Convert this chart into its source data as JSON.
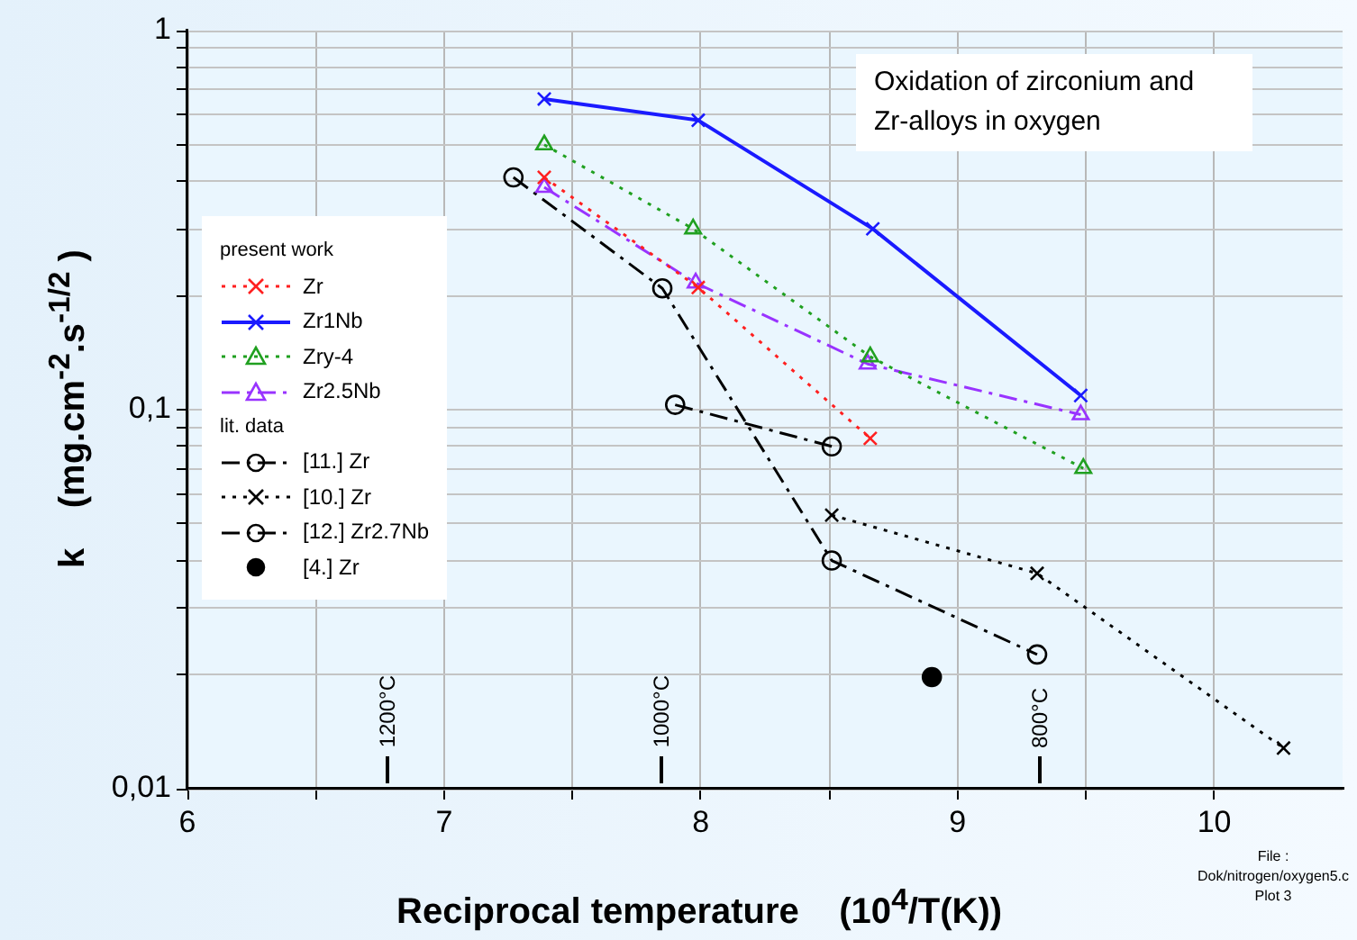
{
  "chart_data": {
    "type": "line",
    "title": "Oxidation of zirconium and Zr-alloys in oxygen",
    "xlabel": "Reciprocal temperature    (10$^{4}$/T(K))",
    "ylabel": "k    (mg.cm$^{-2}$.s$^{-1/2}$ )",
    "log": "y",
    "grid": true,
    "legend": "left",
    "xlim": [
      6,
      10.5
    ],
    "ylim": [
      0.01,
      1
    ],
    "xticks": [
      6,
      {
        "value": 6.5,
        "label": null
      },
      7,
      {
        "value": 7.5,
        "label": null
      },
      8,
      {
        "value": 8.5,
        "label": null
      },
      9,
      {
        "value": 9.5,
        "label": null
      },
      10
    ],
    "yticks": [
      {
        "value": 0.01,
        "label": "0,01"
      },
      {
        "value": 0.02,
        "label": null
      },
      {
        "value": 0.03,
        "label": null
      },
      {
        "value": 0.04,
        "label": null
      },
      {
        "value": 0.05,
        "label": null
      },
      {
        "value": 0.06,
        "label": null
      },
      {
        "value": 0.07,
        "label": null
      },
      {
        "value": 0.08,
        "label": null
      },
      {
        "value": 0.09,
        "label": null
      },
      {
        "value": 0.1,
        "label": "0,1"
      },
      {
        "value": 0.2,
        "label": null
      },
      {
        "value": 0.3,
        "label": null
      },
      {
        "value": 0.4,
        "label": null
      },
      {
        "value": 0.5,
        "label": null
      },
      {
        "value": 0.6,
        "label": null
      },
      {
        "value": 0.7,
        "label": null
      },
      {
        "value": 0.8,
        "label": null
      },
      {
        "value": 0.9,
        "label": null
      },
      {
        "value": 1,
        "label": "1"
      }
    ],
    "annotations": [
      "present work",
      "lit. data",
      "1200°C",
      "1000°C",
      "800°C",
      "File : Dok/nitrogen/oxygen5.c",
      "Plot 3"
    ],
    "series": [
      {
        "name": "Zr",
        "color": "#ff2020",
        "marker": "cross",
        "line_style": "dotted",
        "x": [
          7.39,
          7.99,
          8.66
        ],
        "values": [
          0.41,
          0.21,
          0.084
        ]
      },
      {
        "name": "Zr1Nb",
        "color": "#1a1aff",
        "marker": "cross",
        "line_style": "solid",
        "x": [
          7.39,
          7.99,
          8.67,
          9.48
        ],
        "values": [
          0.66,
          0.58,
          0.3,
          0.109
        ]
      },
      {
        "name": "Zry-4",
        "color": "#20a020",
        "marker": "triangle",
        "line_style": "dotted",
        "x": [
          7.39,
          7.97,
          8.66,
          9.49
        ],
        "values": [
          0.5,
          0.3,
          0.138,
          0.07
        ]
      },
      {
        "name": "Zr2.5Nb",
        "color": "#9933ff",
        "marker": "triangle",
        "line_style": "dashed",
        "x": [
          7.39,
          7.98,
          8.65,
          9.48
        ],
        "values": [
          0.386,
          0.216,
          0.132,
          0.097
        ]
      },
      {
        "name": "[11.] Zr",
        "color": "#000000",
        "marker": "circle",
        "line_style": "dashed",
        "x": [
          7.27,
          7.85,
          8.51,
          9.31
        ],
        "values": [
          0.41,
          0.209,
          0.04,
          0.0226
        ]
      },
      {
        "name": "[10.] Zr",
        "color": "#000000",
        "marker": "cross",
        "line_style": "dotted",
        "x": [
          8.51,
          9.31,
          10.27
        ],
        "values": [
          0.0527,
          0.037,
          0.0128
        ]
      },
      {
        "name": "[12.] Zr2.7Nb",
        "color": "#000000",
        "marker": "circle",
        "line_style": "dashed",
        "x": [
          7.9,
          8.51
        ],
        "values": [
          0.103,
          0.08
        ]
      },
      {
        "name": "[4.] Zr",
        "type": "scatter",
        "color": "#000000",
        "marker": "circle",
        "x": [
          8.9
        ],
        "values": [
          0.0197
        ]
      }
    ]
  }
}
